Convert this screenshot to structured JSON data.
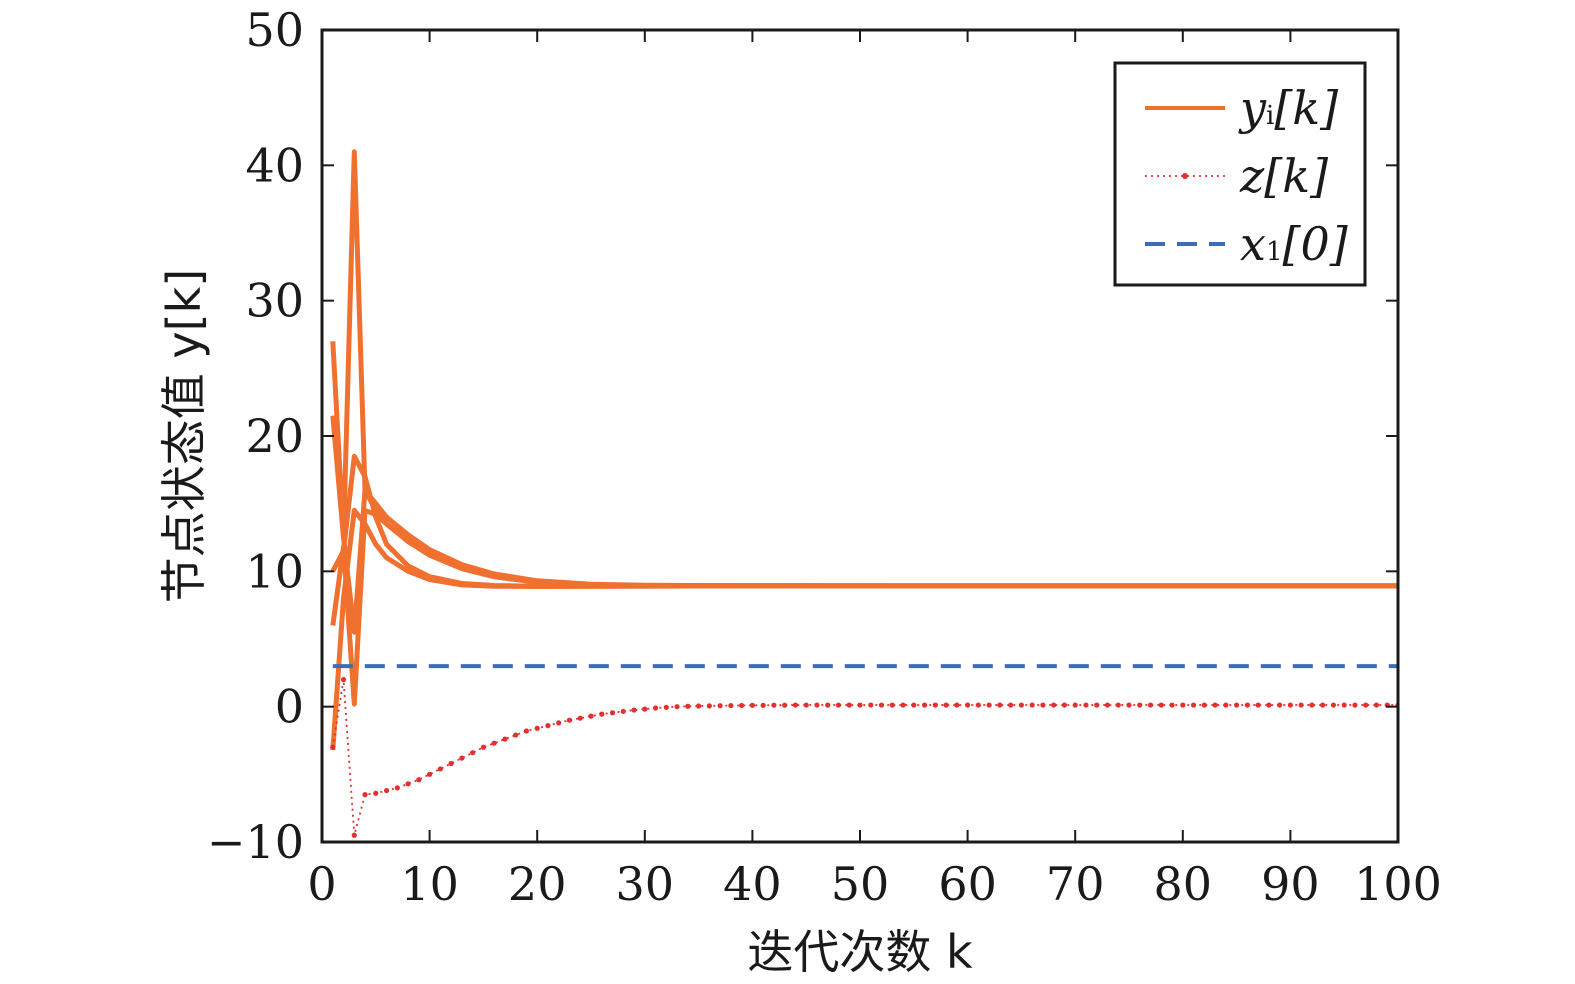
{
  "chart_data": {
    "type": "line",
    "xlabel": "迭代次数 k",
    "ylabel": "节点状态值 y[k]",
    "xlim": [
      0,
      100
    ],
    "ylim": [
      -10,
      50
    ],
    "xticks": [
      0,
      10,
      20,
      30,
      40,
      50,
      60,
      70,
      80,
      90,
      100
    ],
    "yticks": [
      -10,
      0,
      10,
      20,
      30,
      40,
      50
    ],
    "ytick_labels": [
      "−10",
      "0",
      "10",
      "20",
      "30",
      "40",
      "50"
    ],
    "grid": false,
    "legend_position": "top-right",
    "legend": [
      {
        "label": "y",
        "sub": "i",
        "suffix": "[k]",
        "style": "solid",
        "color": "#f07030"
      },
      {
        "label": "z",
        "sub": "",
        "suffix": "[k]",
        "style": "dotted",
        "color": "#e03030"
      },
      {
        "label": "x",
        "sub": "1",
        "suffix": "[0]",
        "style": "dashed",
        "color": "#3a6db5"
      }
    ],
    "series": [
      {
        "group": "yi",
        "color": "#f07030",
        "points": [
          [
            1,
            27
          ],
          [
            2,
            12.5
          ],
          [
            3,
            41
          ],
          [
            4,
            16
          ],
          [
            5,
            14.5
          ],
          [
            6,
            13.5
          ],
          [
            8,
            12.2
          ],
          [
            10,
            11.2
          ],
          [
            13,
            10.2
          ],
          [
            16,
            9.6
          ],
          [
            20,
            9.2
          ],
          [
            25,
            9.0
          ],
          [
            30,
            8.95
          ],
          [
            40,
            8.93
          ],
          [
            60,
            8.92
          ],
          [
            100,
            8.92
          ]
        ]
      },
      {
        "group": "yi",
        "color": "#f07030",
        "points": [
          [
            1,
            21.5
          ],
          [
            2,
            12.5
          ],
          [
            3,
            5.5
          ],
          [
            4,
            16
          ],
          [
            5,
            15
          ],
          [
            6,
            14
          ],
          [
            8,
            12.7
          ],
          [
            10,
            11.6
          ],
          [
            13,
            10.5
          ],
          [
            16,
            9.8
          ],
          [
            20,
            9.3
          ],
          [
            25,
            9.05
          ],
          [
            30,
            8.97
          ],
          [
            40,
            8.93
          ],
          [
            60,
            8.92
          ],
          [
            100,
            8.92
          ]
        ]
      },
      {
        "group": "yi",
        "color": "#f07030",
        "points": [
          [
            1,
            6
          ],
          [
            2,
            11.8
          ],
          [
            3,
            0.2
          ],
          [
            4,
            14.5
          ],
          [
            5,
            14.2
          ],
          [
            6,
            13.5
          ],
          [
            8,
            12.3
          ],
          [
            10,
            11.2
          ],
          [
            13,
            10.2
          ],
          [
            16,
            9.6
          ],
          [
            20,
            9.2
          ],
          [
            25,
            9.0
          ],
          [
            30,
            8.95
          ],
          [
            40,
            8.93
          ],
          [
            60,
            8.92
          ],
          [
            100,
            8.92
          ]
        ]
      },
      {
        "group": "yi",
        "color": "#f07030",
        "points": [
          [
            1,
            -3.2
          ],
          [
            2,
            8
          ],
          [
            3,
            14.5
          ],
          [
            4,
            13.5
          ],
          [
            5,
            12
          ],
          [
            6,
            11
          ],
          [
            8,
            10
          ],
          [
            10,
            9.4
          ],
          [
            13,
            9.0
          ],
          [
            16,
            8.9
          ],
          [
            20,
            8.88
          ],
          [
            25,
            8.9
          ],
          [
            30,
            8.91
          ],
          [
            40,
            8.92
          ],
          [
            60,
            8.92
          ],
          [
            100,
            8.92
          ]
        ]
      },
      {
        "group": "yi",
        "color": "#f07030",
        "points": [
          [
            1,
            10
          ],
          [
            2,
            11.5
          ],
          [
            3,
            18.5
          ],
          [
            4,
            17
          ],
          [
            5,
            14
          ],
          [
            6,
            12
          ],
          [
            8,
            10.4
          ],
          [
            10,
            9.6
          ],
          [
            13,
            9.1
          ],
          [
            16,
            8.95
          ],
          [
            20,
            8.9
          ],
          [
            25,
            8.9
          ],
          [
            30,
            8.91
          ],
          [
            40,
            8.92
          ],
          [
            60,
            8.92
          ],
          [
            100,
            8.92
          ]
        ]
      },
      {
        "group": "z",
        "color": "#e03030",
        "points": [
          [
            1,
            -3
          ],
          [
            2,
            2
          ],
          [
            3,
            -9.5
          ],
          [
            4,
            -6.5
          ],
          [
            5,
            -6.4
          ],
          [
            6,
            -6.2
          ],
          [
            7,
            -6
          ],
          [
            8,
            -5.7
          ],
          [
            9,
            -5.4
          ],
          [
            10,
            -5
          ],
          [
            11,
            -4.6
          ],
          [
            12,
            -4.2
          ],
          [
            13,
            -3.8
          ],
          [
            14,
            -3.4
          ],
          [
            15,
            -3.0
          ],
          [
            16,
            -2.7
          ],
          [
            17,
            -2.4
          ],
          [
            18,
            -2.1
          ],
          [
            19,
            -1.8
          ],
          [
            20,
            -1.6
          ],
          [
            21,
            -1.4
          ],
          [
            22,
            -1.2
          ],
          [
            23,
            -1.0
          ],
          [
            24,
            -0.85
          ],
          [
            25,
            -0.7
          ],
          [
            26,
            -0.55
          ],
          [
            27,
            -0.45
          ],
          [
            28,
            -0.35
          ],
          [
            29,
            -0.25
          ],
          [
            30,
            -0.18
          ],
          [
            31,
            -0.1
          ],
          [
            32,
            -0.05
          ],
          [
            33,
            0
          ],
          [
            34,
            0.03
          ],
          [
            35,
            0.05
          ],
          [
            36,
            0.06
          ],
          [
            37,
            0.07
          ],
          [
            38,
            0.08
          ],
          [
            39,
            0.09
          ],
          [
            40,
            0.1
          ],
          [
            41,
            0.1
          ],
          [
            42,
            0.11
          ],
          [
            43,
            0.11
          ],
          [
            44,
            0.12
          ],
          [
            45,
            0.12
          ],
          [
            46,
            0.12
          ],
          [
            47,
            0.12
          ],
          [
            48,
            0.12
          ],
          [
            49,
            0.12
          ],
          [
            50,
            0.12
          ],
          [
            51,
            0.12
          ],
          [
            52,
            0.12
          ],
          [
            53,
            0.12
          ],
          [
            54,
            0.12
          ],
          [
            55,
            0.12
          ],
          [
            56,
            0.12
          ],
          [
            57,
            0.12
          ],
          [
            58,
            0.12
          ],
          [
            59,
            0.12
          ],
          [
            60,
            0.12
          ],
          [
            61,
            0.12
          ],
          [
            62,
            0.12
          ],
          [
            63,
            0.12
          ],
          [
            64,
            0.12
          ],
          [
            65,
            0.12
          ],
          [
            66,
            0.12
          ],
          [
            67,
            0.12
          ],
          [
            68,
            0.12
          ],
          [
            69,
            0.12
          ],
          [
            70,
            0.12
          ],
          [
            71,
            0.12
          ],
          [
            72,
            0.12
          ],
          [
            73,
            0.12
          ],
          [
            74,
            0.12
          ],
          [
            75,
            0.12
          ],
          [
            76,
            0.12
          ],
          [
            77,
            0.12
          ],
          [
            78,
            0.12
          ],
          [
            79,
            0.12
          ],
          [
            80,
            0.12
          ],
          [
            81,
            0.12
          ],
          [
            82,
            0.12
          ],
          [
            83,
            0.12
          ],
          [
            84,
            0.12
          ],
          [
            85,
            0.12
          ],
          [
            86,
            0.12
          ],
          [
            87,
            0.12
          ],
          [
            88,
            0.12
          ],
          [
            89,
            0.12
          ],
          [
            90,
            0.12
          ],
          [
            91,
            0.12
          ],
          [
            92,
            0.12
          ],
          [
            93,
            0.12
          ],
          [
            94,
            0.12
          ],
          [
            95,
            0.12
          ],
          [
            96,
            0.12
          ],
          [
            97,
            0.12
          ],
          [
            98,
            0.12
          ],
          [
            99,
            0.12
          ],
          [
            100,
            0.12
          ]
        ]
      },
      {
        "group": "x0",
        "color": "#3a6db5",
        "points": [
          [
            1,
            3
          ],
          [
            100,
            3
          ]
        ]
      }
    ]
  }
}
